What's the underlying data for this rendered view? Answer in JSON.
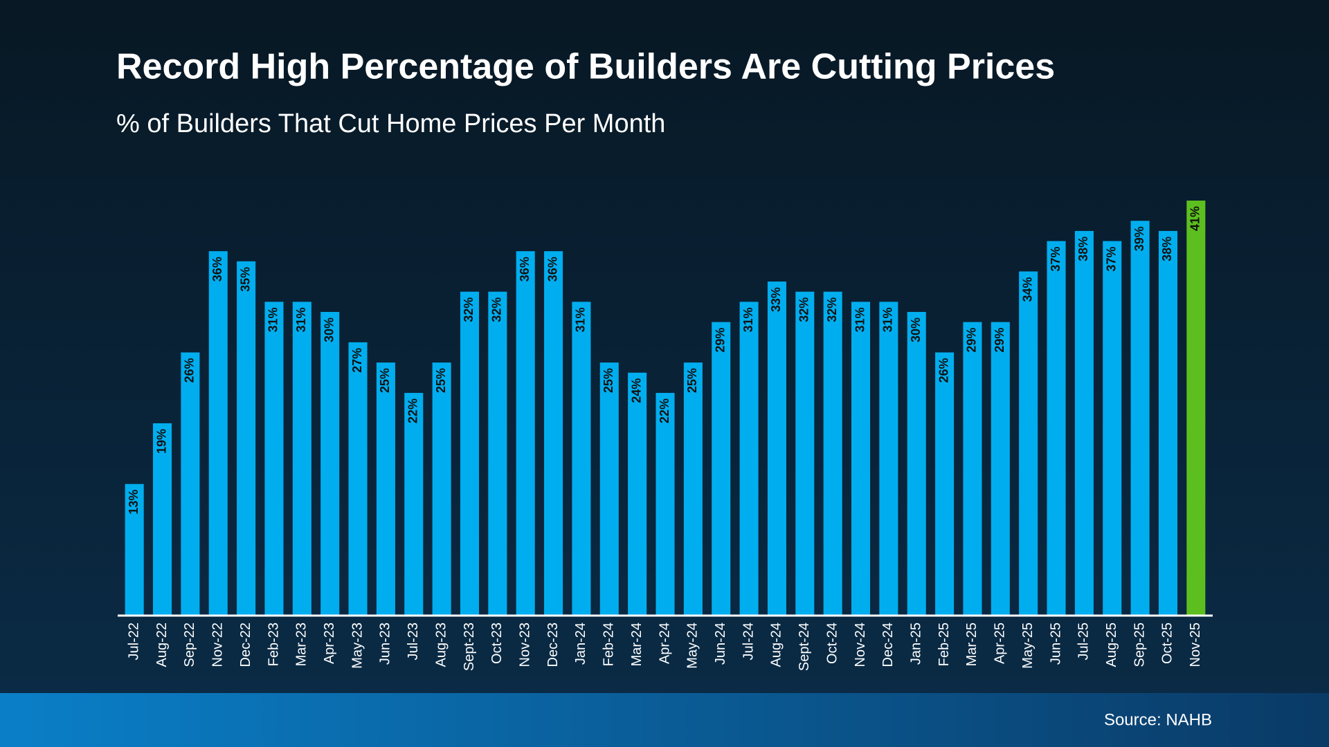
{
  "chart_data": {
    "type": "bar",
    "title": "Record High Percentage of Builders Are Cutting Prices",
    "subtitle": "% of Builders That Cut Home Prices Per Month",
    "source": "Source: NAHB",
    "categories": [
      "Jul-22",
      "Aug-22",
      "Sep-22",
      "Nov-22",
      "Dec-22",
      "Feb-23",
      "Mar-23",
      "Apr-23",
      "May-23",
      "Jun-23",
      "Jul-23",
      "Aug-23",
      "Sept-23",
      "Oct-23",
      "Nov-23",
      "Dec-23",
      "Jan-24",
      "Feb-24",
      "Mar-24",
      "Apr-24",
      "May-24",
      "Jun-24",
      "Jul-24",
      "Aug-24",
      "Sept-24",
      "Oct-24",
      "Nov-24",
      "Dec-24",
      "Jan-25",
      "Feb-25",
      "Mar-25",
      "Apr-25",
      "May-25",
      "Jun-25",
      "Jul-25",
      "Aug-25",
      "Sep-25",
      "Oct-25",
      "Nov-25"
    ],
    "values": [
      13,
      19,
      26,
      36,
      35,
      31,
      31,
      30,
      27,
      25,
      22,
      25,
      32,
      32,
      36,
      36,
      31,
      25,
      24,
      22,
      25,
      29,
      31,
      33,
      32,
      32,
      31,
      31,
      30,
      26,
      29,
      29,
      34,
      37,
      38,
      37,
      39,
      38,
      41
    ],
    "value_labels": [
      "13%",
      "19%",
      "26%",
      "36%",
      "35%",
      "31%",
      "31%",
      "30%",
      "27%",
      "25%",
      "22%",
      "25%",
      "32%",
      "32%",
      "36%",
      "36%",
      "31%",
      "25%",
      "24%",
      "22%",
      "25%",
      "29%",
      "31%",
      "33%",
      "32%",
      "32%",
      "31%",
      "31%",
      "30%",
      "26%",
      "29%",
      "29%",
      "34%",
      "37%",
      "38%",
      "37%",
      "39%",
      "38%",
      "41%"
    ],
    "colors": [
      "#00aeef",
      "#00aeef",
      "#00aeef",
      "#00aeef",
      "#00aeef",
      "#00aeef",
      "#00aeef",
      "#00aeef",
      "#00aeef",
      "#00aeef",
      "#00aeef",
      "#00aeef",
      "#00aeef",
      "#00aeef",
      "#00aeef",
      "#00aeef",
      "#00aeef",
      "#00aeef",
      "#00aeef",
      "#00aeef",
      "#00aeef",
      "#00aeef",
      "#00aeef",
      "#00aeef",
      "#00aeef",
      "#00aeef",
      "#00aeef",
      "#00aeef",
      "#00aeef",
      "#00aeef",
      "#00aeef",
      "#00aeef",
      "#00aeef",
      "#00aeef",
      "#00aeef",
      "#00aeef",
      "#00aeef",
      "#00aeef",
      "#5cbf1f"
    ]
  }
}
